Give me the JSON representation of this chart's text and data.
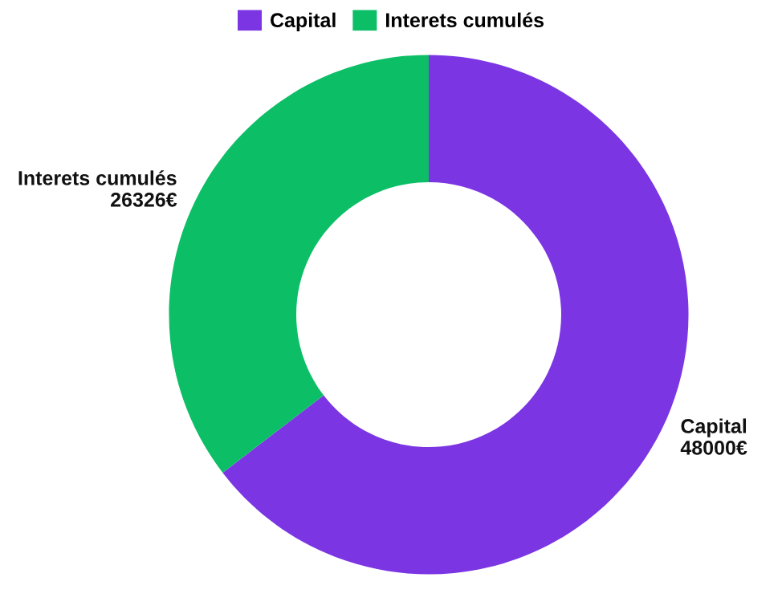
{
  "chart_data": {
    "type": "donut",
    "categories": [
      "Capital",
      "Interets cumulés"
    ],
    "values": [
      48000,
      26326
    ],
    "colors": [
      "#7b35e3",
      "#0cbf66"
    ],
    "value_labels": [
      "48000€",
      "26326€"
    ],
    "legend": "top"
  }
}
